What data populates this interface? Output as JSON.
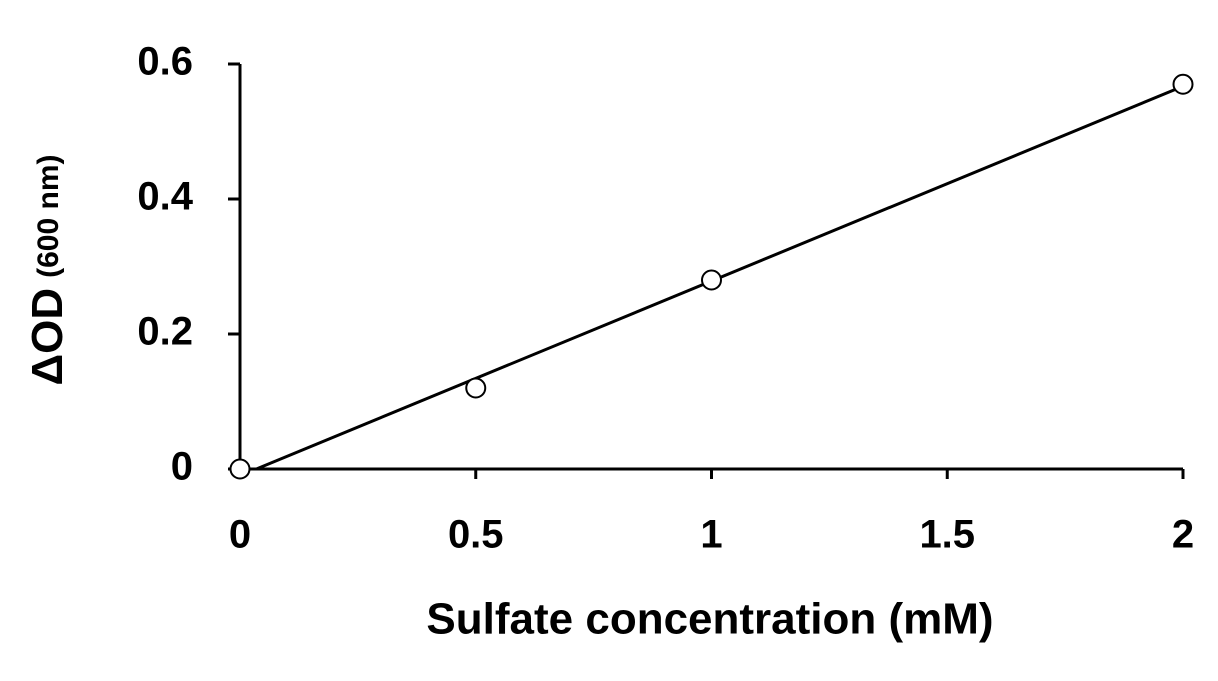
{
  "chart_data": {
    "type": "scatter",
    "x_label": "Sulfate concentration (mM)",
    "y_label": "ΔOD",
    "y_label_unit": "(600 nm)",
    "x": [
      0,
      0.5,
      1,
      2
    ],
    "values": [
      0,
      0.12,
      0.28,
      0.57
    ],
    "color": "#000000",
    "trendline": {
      "x": [
        0,
        2
      ],
      "values": [
        -0.01,
        0.567
      ]
    },
    "xlim": [
      0,
      2
    ],
    "xticks": [
      0,
      0.5,
      1,
      1.5,
      2
    ],
    "ylim": [
      0,
      0.6
    ],
    "yticks": [
      0,
      0.2,
      0.4,
      0.6
    ],
    "grid": false
  }
}
